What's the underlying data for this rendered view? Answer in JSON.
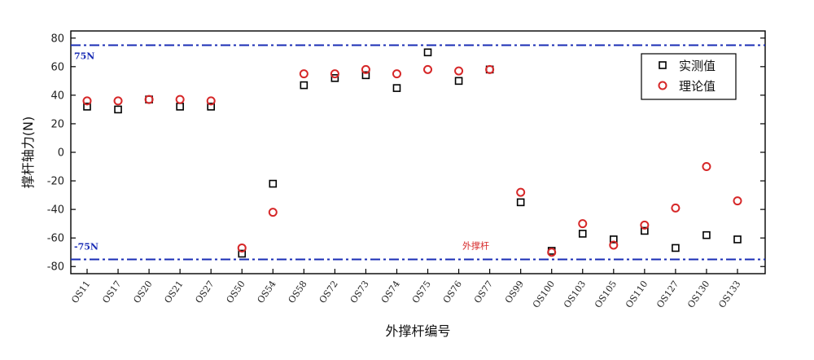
{
  "chart_data": {
    "type": "scatter",
    "xlabel": "外撑杆编号",
    "ylabel": "撑杆轴力(N)",
    "ylim": [
      -85,
      85
    ],
    "yticks": [
      -80,
      -60,
      -40,
      -20,
      0,
      20,
      40,
      60,
      80
    ],
    "categories": [
      "OS11",
      "OS17",
      "OS20",
      "OS21",
      "OS27",
      "OS50",
      "OS54",
      "OS58",
      "OS72",
      "OS73",
      "OS74",
      "OS75",
      "OS76",
      "OS77",
      "OS99",
      "OS100",
      "OS103",
      "OS105",
      "OS110",
      "OS127",
      "OS130",
      "OS133"
    ],
    "series": [
      {
        "name": "实测值",
        "marker": "square",
        "color": "#000000",
        "values": [
          32,
          30,
          37,
          32,
          32,
          -71,
          -22,
          47,
          52,
          54,
          45,
          70,
          50,
          58,
          -35,
          -69,
          -57,
          -61,
          -55,
          -67,
          -58,
          -61
        ]
      },
      {
        "name": "理论值",
        "marker": "circle",
        "color": "#d62728",
        "values": [
          36,
          36,
          37,
          37,
          36,
          -67,
          -42,
          55,
          55,
          58,
          55,
          58,
          57,
          58,
          -28,
          -70,
          -50,
          -65,
          -51,
          -39,
          -10,
          -34
        ]
      }
    ],
    "reference_lines": [
      {
        "value": 75,
        "label": "75N",
        "color": "#1a2db5"
      },
      {
        "value": -75,
        "label": "-75N",
        "color": "#1a2db5"
      }
    ],
    "annotations": [
      "外撑杆"
    ],
    "legend_position": "top-right",
    "grid": false
  }
}
